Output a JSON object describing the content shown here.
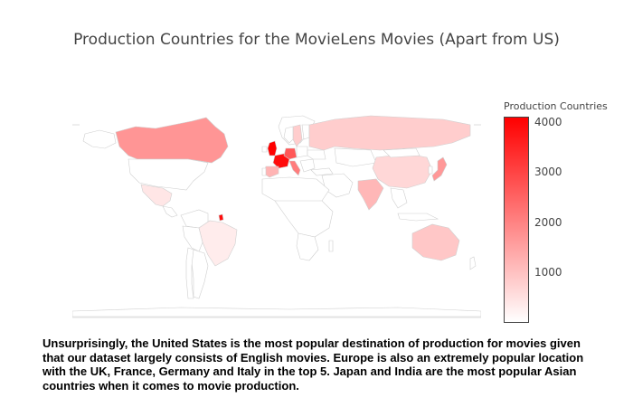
{
  "title": "Production Countries for the MovieLens Movies (Apart from US)",
  "colorbar": {
    "title": "Production Countries",
    "ticks": [
      "4000",
      "3000",
      "2000",
      "1000"
    ],
    "min": 0,
    "max": 4100,
    "color_low": "#ffffff",
    "color_high": "#ff0000"
  },
  "map": {
    "projection": "equirectangular",
    "countries": [
      {
        "name": "United Kingdom",
        "value": 4100
      },
      {
        "name": "France",
        "value": 3900
      },
      {
        "name": "Germany",
        "value": 2700
      },
      {
        "name": "Italy",
        "value": 2100
      },
      {
        "name": "Japan",
        "value": 1650
      },
      {
        "name": "Canada",
        "value": 1700
      },
      {
        "name": "India",
        "value": 1150
      },
      {
        "name": "Spain",
        "value": 1200
      },
      {
        "name": "Australia",
        "value": 900
      },
      {
        "name": "Russia",
        "value": 800
      },
      {
        "name": "China",
        "value": 650
      },
      {
        "name": "Sweden",
        "value": 800
      },
      {
        "name": "Hong Kong",
        "value": 600
      },
      {
        "name": "Mexico",
        "value": 400
      },
      {
        "name": "Brazil",
        "value": 300
      },
      {
        "name": "French Guiana",
        "value": 3900
      }
    ]
  },
  "caption": "Unsurprisingly, the United States is the most popular destination of production for movies given that our dataset largely consists of English movies. Europe is also an extremely popular location with the UK, France, Germany and Italy in the top 5. Japan and India are the most popular Asian countries when it comes to movie production."
}
